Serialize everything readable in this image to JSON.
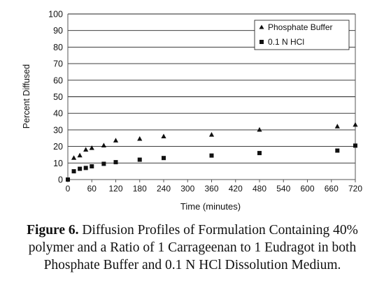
{
  "chart_data": {
    "type": "scatter",
    "xlabel": "Time (minutes)",
    "ylabel": "Percent Diffused",
    "xlim": [
      0,
      720
    ],
    "ylim": [
      0,
      100
    ],
    "x_ticks": [
      "0",
      "60",
      "120",
      "180",
      "240",
      "300",
      "360",
      "420",
      "480",
      "540",
      "600",
      "660",
      "720"
    ],
    "y_ticks": [
      "0",
      "10",
      "20",
      "30",
      "40",
      "50",
      "60",
      "70",
      "80",
      "90",
      "100"
    ],
    "grid": "horizontal",
    "legend_position": "top-right",
    "series": [
      {
        "name": "Phosphate Buffer",
        "marker": "triangle",
        "x": [
          15,
          30,
          45,
          60,
          90,
          120,
          180,
          240,
          360,
          480,
          675,
          720
        ],
        "y": [
          13,
          14.5,
          18,
          19,
          20.5,
          23.5,
          24.5,
          26,
          27,
          30,
          32,
          33
        ]
      },
      {
        "name": "0.1 N HCl",
        "marker": "square",
        "x": [
          0,
          15,
          30,
          45,
          60,
          90,
          120,
          180,
          240,
          360,
          480,
          675,
          720
        ],
        "y": [
          0,
          5,
          6.5,
          7,
          8,
          9.5,
          10.5,
          12,
          13,
          14.5,
          16,
          17.5,
          20.5
        ]
      }
    ]
  },
  "caption": {
    "label": "Figure 6.",
    "text": " Diffusion Profiles of Formulation Containing 40% polymer and a Ratio of 1 Carrageenan to 1 Eudragot in both Phosphate Buffer and 0.1 N HCl Dissolution Medium."
  },
  "colors": {
    "marker": "#111111",
    "grid": "#222222",
    "axis": "#555555"
  }
}
